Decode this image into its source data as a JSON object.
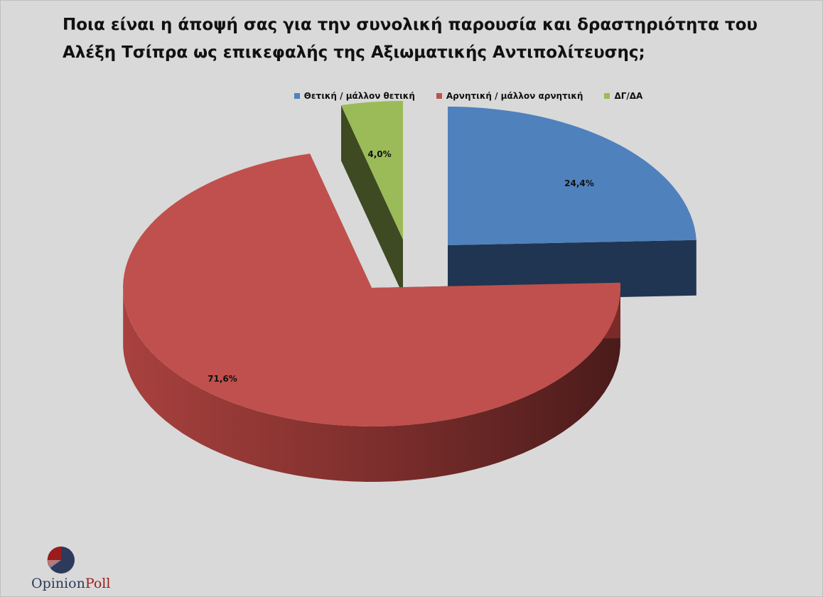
{
  "chart_data": {
    "type": "pie",
    "title_lines": [
      "Ποια είναι η άποψή σας για την συνολική παρουσία και δραστηριότητα του",
      "Αλέξη Τσίπρα ως επικεφαλής της Αξιωματικής Αντιπολίτευσης;"
    ],
    "slices": [
      {
        "name": "Θετική / μάλλον θετική",
        "value": 24.4,
        "label": "24,4%",
        "color": "#4f81bd",
        "side_color": "#1f3552"
      },
      {
        "name": "Αρνητική / μάλλον αρνητική",
        "value": 71.6,
        "label": "71,6%",
        "color": "#c0504d",
        "side_color": "#7a2b29"
      },
      {
        "name": "ΔΓ/ΔΑ",
        "value": 4.0,
        "label": "4,0%",
        "color": "#9bbb59",
        "side_color": "#3d4a22"
      }
    ],
    "legend_position": "top",
    "exploded": true,
    "three_d": true
  },
  "logo": {
    "part1": "Opinion",
    "part2": "Poll"
  }
}
